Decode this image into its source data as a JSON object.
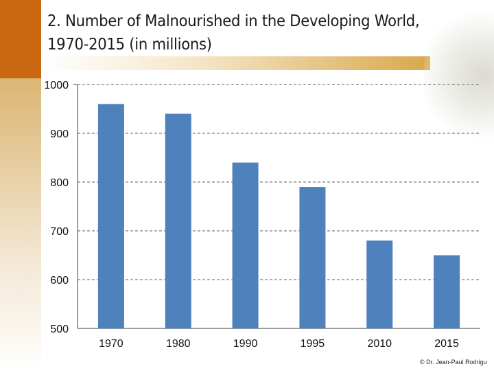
{
  "title_line1": "2. Number of Malnourished in the Developing World,",
  "title_line2": "1970-2015 (in millions)",
  "copyright": "© Dr. Jean-Paul Rodrigu",
  "chart_data": {
    "type": "bar",
    "categories": [
      "1970",
      "1980",
      "1990",
      "1995",
      "2010",
      "2015"
    ],
    "values": [
      960,
      940,
      840,
      790,
      680,
      650
    ],
    "ylim": [
      500,
      1000
    ],
    "yticks": [
      1000,
      900,
      800,
      700,
      600,
      500
    ],
    "title": "",
    "xlabel": "",
    "ylabel": "",
    "grid": true,
    "bar_color": "#4f81bd"
  }
}
